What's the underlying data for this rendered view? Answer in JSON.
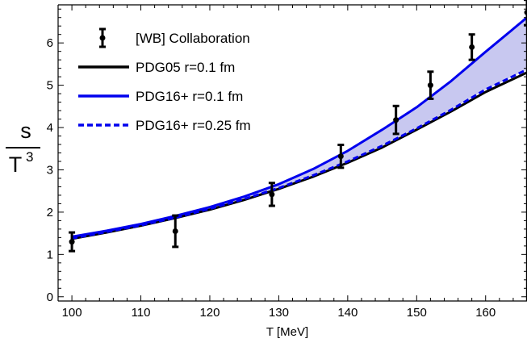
{
  "chart_data": {
    "type": "line",
    "xlabel": "T [MeV]",
    "ylabel": {
      "numerator": "s",
      "denominator": "T",
      "exponent": "3"
    },
    "xlim": [
      98,
      166
    ],
    "ylim": [
      -0.1,
      6.9
    ],
    "xticks": [
      100,
      110,
      120,
      130,
      140,
      150,
      160
    ],
    "yticks": [
      0,
      1,
      2,
      3,
      4,
      5,
      6
    ],
    "grid": false,
    "legend_position": "top-left",
    "series": [
      {
        "name": "PDG05 r=0.1 fm",
        "color": "#000000",
        "style": "solid",
        "x": [
          100,
          105,
          110,
          115,
          120,
          125,
          130,
          135,
          140,
          145,
          150,
          155,
          160,
          166
        ],
        "y": [
          1.37,
          1.52,
          1.68,
          1.86,
          2.06,
          2.29,
          2.55,
          2.84,
          3.17,
          3.53,
          3.95,
          4.38,
          4.84,
          5.3
        ]
      },
      {
        "name": "PDG16+ r=0.1 fm",
        "color": "#0000ee",
        "style": "solid",
        "x": [
          100,
          105,
          110,
          115,
          120,
          125,
          130,
          135,
          140,
          145,
          150,
          155,
          160,
          166
        ],
        "y": [
          1.42,
          1.56,
          1.72,
          1.91,
          2.12,
          2.37,
          2.66,
          3.02,
          3.45,
          3.95,
          4.48,
          5.1,
          5.79,
          6.6
        ]
      },
      {
        "name": "PDG16+ r=0.25 fm",
        "color": "#0000ee",
        "style": "dashed",
        "x": [
          100,
          105,
          110,
          115,
          120,
          125,
          130,
          135,
          140,
          145,
          150,
          155,
          160,
          166
        ],
        "y": [
          1.38,
          1.53,
          1.69,
          1.87,
          2.08,
          2.31,
          2.57,
          2.87,
          3.2,
          3.57,
          3.98,
          4.42,
          4.9,
          5.37
        ]
      },
      {
        "name": "[WB] Collaboration",
        "color": "#000000",
        "style": "errorbar",
        "x": [
          100,
          115,
          129,
          139,
          147,
          152,
          158,
          166
        ],
        "y": [
          1.3,
          1.55,
          2.42,
          3.32,
          4.18,
          5.0,
          5.9,
          6.72
        ],
        "err": [
          0.22,
          0.37,
          0.27,
          0.27,
          0.33,
          0.32,
          0.3,
          0.3
        ]
      }
    ],
    "band": {
      "between": [
        "PDG16+ r=0.1 fm",
        "PDG16+ r=0.25 fm"
      ],
      "color": "#c8c8f0"
    }
  }
}
